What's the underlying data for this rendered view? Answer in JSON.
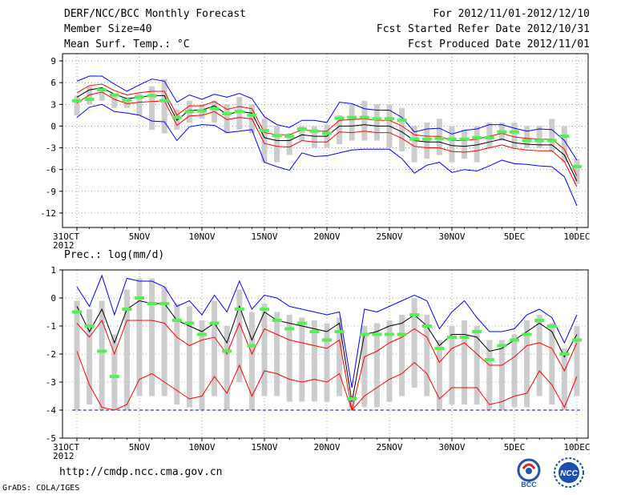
{
  "header": {
    "title": "DERF/NCC/BCC Monthly Forecast",
    "member_size": "Member Size=40",
    "variable": "Mean Surf. Temp.: °C",
    "period": "For 2012/11/01-2012/12/10",
    "started": "Fcst Started Refer Date 2012/10/31",
    "produced": "Fcst Produced Date 2012/11/01"
  },
  "footer": {
    "url": "http://cmdp.ncc.cma.gov.cn",
    "credit": "GrADS: COLA/IGES",
    "logo_left_text": "BCC",
    "logo_right_text": "NCC"
  },
  "colors": {
    "ensemble_mean": "#000000",
    "inner_range": "#ff0000",
    "outer_range": "#0000ff",
    "box": "#cccccc",
    "median_marker": "#55ee55"
  },
  "chart_data": [
    {
      "type": "line",
      "title": "Mean Surf. Temp.: °C",
      "x_day_index": [
        0,
        1,
        2,
        3,
        4,
        5,
        6,
        7,
        8,
        9,
        10,
        11,
        12,
        13,
        14,
        15,
        16,
        17,
        18,
        19,
        20,
        21,
        22,
        23,
        24,
        25,
        26,
        27,
        28,
        29,
        30,
        31,
        32,
        33,
        34,
        35,
        36,
        37,
        38,
        39,
        40
      ],
      "tick_labels": [
        "31OCT",
        "5NOV",
        "10NOV",
        "15NOV",
        "20NOV",
        "25NOV",
        "30NOV",
        "5DEC",
        "10DEC"
      ],
      "year_label": "2012",
      "ylim": [
        -14,
        10
      ],
      "yticks": [
        9,
        6,
        3,
        0,
        -3,
        -6,
        -9,
        -12
      ],
      "series": [
        {
          "name": "mean",
          "color": "#000000",
          "values": [
            4,
            5,
            5.3,
            4.4,
            3.8,
            4,
            4.2,
            4.2,
            0.8,
            2.2,
            2.2,
            2.8,
            1.6,
            2,
            1.8,
            -1.6,
            -2,
            -2,
            -1.2,
            -1.4,
            -1.4,
            0,
            0,
            0.2,
            0,
            0,
            -0.8,
            -2,
            -2.2,
            -2.2,
            -2.7,
            -2.8,
            -2.6,
            -2.2,
            -1.8,
            -2.3,
            -2.5,
            -2.6,
            -2.6,
            -4,
            -7.6
          ]
        },
        {
          "name": "upper-red",
          "color": "#ff0000",
          "values": [
            4.6,
            5.6,
            5.8,
            4.9,
            4.3,
            4.6,
            4.8,
            4.8,
            1.5,
            2.8,
            2.8,
            3.4,
            2.3,
            2.7,
            2.4,
            -0.9,
            -1.2,
            -1.2,
            -0.5,
            -0.7,
            -0.7,
            0.8,
            0.9,
            1,
            0.8,
            0.8,
            0,
            -1.2,
            -1.4,
            -1.4,
            -2,
            -2,
            -1.8,
            -1.4,
            -1,
            -1.5,
            -1.7,
            -1.8,
            -1.8,
            -3.2,
            -6.9
          ]
        },
        {
          "name": "lower-red",
          "color": "#ff0000",
          "values": [
            3.2,
            4.3,
            4.7,
            3.7,
            3.1,
            3.3,
            3.4,
            3.5,
            0.1,
            1.4,
            1.5,
            2,
            0.9,
            1.2,
            1,
            -2.4,
            -2.8,
            -2.9,
            -2,
            -2.2,
            -2.2,
            -0.8,
            -0.9,
            -0.7,
            -0.9,
            -0.9,
            -1.7,
            -2.8,
            -3,
            -3,
            -3.5,
            -3.6,
            -3.4,
            -3,
            -2.6,
            -3.1,
            -3.3,
            -3.4,
            -3.4,
            -4.9,
            -8.4
          ]
        },
        {
          "name": "upper-blue",
          "color": "#0000ff",
          "values": [
            6.2,
            6.9,
            6.9,
            5.8,
            4.8,
            5.7,
            6.5,
            6.2,
            3.3,
            4.3,
            3.7,
            4.4,
            4,
            4.5,
            3.8,
            1.3,
            0.2,
            -0.2,
            0.8,
            0.8,
            0.5,
            3.3,
            3.1,
            2.4,
            2.2,
            2.2,
            1.2,
            -0.8,
            -0.4,
            -0.3,
            -1.1,
            -0.6,
            -0.4,
            0.2,
            0.2,
            -0.3,
            -0.7,
            -0.4,
            -0.5,
            -2,
            -4.7
          ]
        },
        {
          "name": "lower-blue",
          "color": "#0000ff",
          "values": [
            1.2,
            2.6,
            3,
            2,
            1.8,
            1.5,
            0.7,
            0.6,
            -2,
            -0.1,
            0.2,
            0.1,
            -0.9,
            -0.7,
            -0.5,
            -5,
            -5.6,
            -6.1,
            -3.7,
            -4.2,
            -4.1,
            -3.7,
            -3.3,
            -3.2,
            -3.2,
            -3.2,
            -4.5,
            -6.5,
            -5.4,
            -5,
            -6.4,
            -6,
            -6.2,
            -5.5,
            -4.7,
            -5.2,
            -5.3,
            -5.5,
            -5.6,
            -7,
            -11
          ]
        },
        {
          "name": "box-top",
          "color": "#cccccc",
          "values": [
            4.2,
            5.5,
            4.7,
            4.5,
            3.5,
            4.5,
            5.5,
            6.5,
            2.3,
            3.5,
            3,
            3.5,
            3,
            4,
            3,
            1,
            0,
            -1,
            0,
            0,
            0.2,
            1.5,
            3,
            3.5,
            3,
            3,
            2.5,
            0,
            0.5,
            1,
            0,
            -0.5,
            0,
            0.5,
            0.5,
            0.5,
            0,
            0,
            1,
            0,
            -4.5
          ]
        },
        {
          "name": "box-bottom",
          "color": "#cccccc",
          "values": [
            1.5,
            3,
            3.5,
            2.5,
            2.5,
            1.5,
            -0.5,
            -1,
            -0.5,
            0.5,
            1,
            0.5,
            -1,
            -0.5,
            -1,
            -5,
            -5,
            -4,
            -2,
            -3,
            -3,
            -2.5,
            -2,
            -2,
            -2,
            -3,
            -3.5,
            -5,
            -4.5,
            -4,
            -5,
            -4.5,
            -5,
            -3,
            -2,
            -3,
            -3,
            -3,
            -3.5,
            -5,
            -8
          ]
        },
        {
          "name": "median",
          "color": "#55ee55",
          "values": [
            3.5,
            3.7,
            5,
            4.3,
            3.6,
            4,
            4.2,
            3.5,
            1.2,
            2,
            2.1,
            2.4,
            1.7,
            2,
            1.5,
            -0.6,
            -1.3,
            -1.4,
            -0.4,
            -0.7,
            -1,
            1.1,
            1.2,
            1.2,
            1,
            1,
            0.8,
            -1.8,
            -1.8,
            -1.7,
            -1.8,
            -1.8,
            -1.6,
            -1.6,
            -0.8,
            -0.8,
            -2,
            -2,
            -2,
            -1.4,
            -5.6
          ]
        }
      ]
    },
    {
      "type": "line",
      "title": "Prec.: log(mm/d)",
      "x_day_index": [
        0,
        1,
        2,
        3,
        4,
        5,
        6,
        7,
        8,
        9,
        10,
        11,
        12,
        13,
        14,
        15,
        16,
        17,
        18,
        19,
        20,
        21,
        22,
        23,
        24,
        25,
        26,
        27,
        28,
        29,
        30,
        31,
        32,
        33,
        34,
        35,
        36,
        37,
        38,
        39,
        40
      ],
      "tick_labels": [
        "31OCT",
        "5NOV",
        "10NOV",
        "15NOV",
        "20NOV",
        "25NOV",
        "30NOV",
        "5DEC",
        "10DEC"
      ],
      "year_label": "2012",
      "ylim": [
        -5,
        1
      ],
      "yticks": [
        1,
        0,
        -1,
        -2,
        -3,
        -4,
        -5
      ],
      "baseline": -4,
      "series": [
        {
          "name": "mean",
          "color": "#000000",
          "values": [
            -0.3,
            -1.2,
            -0.4,
            -1.6,
            -0.4,
            -0.1,
            -0.2,
            -0.2,
            -0.8,
            -1,
            -1.2,
            -0.9,
            -1.6,
            -0.3,
            -1.5,
            -0.5,
            -0.8,
            -0.9,
            -1,
            -1.1,
            -1.2,
            -0.9,
            -3.7,
            -1.3,
            -1.2,
            -1,
            -0.9,
            -0.6,
            -1,
            -1.7,
            -1.3,
            -1.3,
            -1.4,
            -1.9,
            -1.8,
            -1.5,
            -1.2,
            -0.9,
            -1.2,
            -2.1,
            -1.3
          ]
        },
        {
          "name": "upper-red",
          "color": "#ff0000",
          "values": [
            -0.9,
            -1.4,
            -0.8,
            -2,
            -0.8,
            -0.8,
            -0.8,
            -0.9,
            -1.4,
            -1.7,
            -1.5,
            -1.4,
            -2,
            -0.9,
            -2,
            -1.1,
            -1.3,
            -1.5,
            -1.6,
            -1.7,
            -1.8,
            -1.5,
            -4,
            -2.1,
            -1.9,
            -1.6,
            -1.4,
            -1.1,
            -1.4,
            -2.3,
            -1.8,
            -1.6,
            -2,
            -2.4,
            -2.4,
            -2.1,
            -1.7,
            -1.6,
            -1.8,
            -2.6,
            -1.6
          ]
        },
        {
          "name": "lower-red",
          "color": "#ff0000",
          "values": [
            -1.9,
            -3.1,
            -3.9,
            -4,
            -3.8,
            -2.9,
            -2.7,
            -3,
            -3.3,
            -3.6,
            -3.5,
            -2.8,
            -3.4,
            -2.4,
            -3.5,
            -2.6,
            -2.7,
            -2.9,
            -3,
            -2.9,
            -3,
            -2.7,
            -4,
            -3.5,
            -3.2,
            -2.9,
            -2.7,
            -2.3,
            -2.7,
            -3.6,
            -3.2,
            -3.2,
            -3.2,
            -3.8,
            -3.7,
            -3.5,
            -3.4,
            -2.6,
            -3.1,
            -3.9,
            -2.8
          ]
        },
        {
          "name": "upper-blue",
          "color": "#0000ff",
          "values": [
            0.4,
            -0.3,
            0.8,
            -0.6,
            0.7,
            0.6,
            0.6,
            0.4,
            -0.3,
            -0.1,
            -0.6,
            0.1,
            -0.5,
            0.6,
            -0.4,
            0.1,
            0,
            -0.3,
            -0.4,
            -0.5,
            -0.6,
            -0.5,
            -3.2,
            -0.4,
            -0.5,
            -0.3,
            -0.1,
            0.1,
            -0.1,
            -1.1,
            -0.5,
            -0.1,
            -0.7,
            -1.2,
            -1.2,
            -1.1,
            -0.6,
            -0.4,
            -0.7,
            -1.6,
            -0.6
          ]
        },
        {
          "name": "lower-blue",
          "color": "#0000ff",
          "values": [
            -4,
            -4,
            -4,
            -4,
            -4,
            -4,
            -4,
            -4,
            -4,
            -4,
            -4,
            -4,
            -4,
            -4,
            -4,
            -4,
            -4,
            -4,
            -4,
            -4,
            -4,
            -4,
            -4,
            -4,
            -4,
            -4,
            -4,
            -4,
            -4,
            -4,
            -4,
            -4,
            -4,
            -4,
            -4,
            -4,
            -4,
            -4,
            -4,
            -4,
            -4
          ]
        },
        {
          "name": "box-top",
          "color": "#cccccc",
          "values": [
            -0.1,
            -0.4,
            -0.1,
            -1.3,
            0.3,
            0.7,
            0.7,
            0.4,
            -0.2,
            -0.3,
            -0.8,
            -0.1,
            -1,
            0.3,
            -0.5,
            -0.2,
            -0.5,
            -0.6,
            -0.7,
            -0.8,
            -0.9,
            -0.7,
            -3.5,
            -1,
            -0.9,
            -0.8,
            -0.6,
            0,
            -0.6,
            -1.5,
            -1,
            -0.8,
            -1,
            -1.5,
            -1.5,
            -1.3,
            -0.8,
            -0.6,
            -0.9,
            -1.8,
            -1
          ]
        },
        {
          "name": "box-bottom",
          "color": "#cccccc",
          "values": [
            -4,
            -3.8,
            -4,
            -4,
            -4,
            -3.5,
            -3.5,
            -3.5,
            -3.8,
            -3.9,
            -4,
            -3.5,
            -4,
            -3,
            -4,
            -3.5,
            -3.5,
            -3.7,
            -3.7,
            -3.7,
            -3.7,
            -3.5,
            -4,
            -3.9,
            -3.9,
            -3.7,
            -3.5,
            -3.2,
            -3.5,
            -4,
            -3.8,
            -3.8,
            -3.8,
            -4,
            -4,
            -3.9,
            -3.9,
            -3.5,
            -3.8,
            -4,
            -3.5
          ]
        },
        {
          "name": "median",
          "color": "#55ee55",
          "values": [
            -0.5,
            -1,
            -1.9,
            -2.8,
            -0.4,
            0,
            -0.2,
            -0.2,
            -0.8,
            -0.9,
            -1.3,
            -0.9,
            -1.9,
            -0.4,
            -1.7,
            -0.4,
            -0.8,
            -1.1,
            -0.9,
            -1.2,
            -1.5,
            -1.2,
            -3.6,
            -1.3,
            -1.3,
            -1.3,
            -1.3,
            -0.6,
            -1,
            -1.8,
            -1.4,
            -1.4,
            -1.2,
            -2.2,
            -1.7,
            -1.5,
            -1.3,
            -0.8,
            -1,
            -2,
            -1.5
          ]
        }
      ]
    }
  ]
}
